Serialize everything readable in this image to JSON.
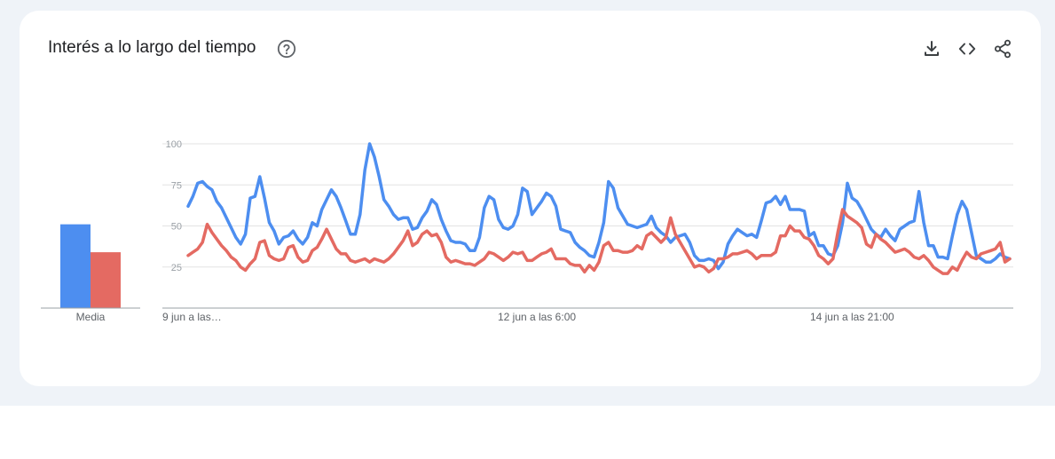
{
  "title": "Interés a lo largo del tiempo",
  "icons": {
    "help": "help-circle-icon",
    "download": "download-icon",
    "embed": "embed-code-icon",
    "share": "share-icon"
  },
  "colors": {
    "series_a": "#4d8ef0",
    "series_b": "#e46a62",
    "background": "#eff3f8",
    "card": "#ffffff"
  },
  "average": {
    "label": "Media",
    "values": [
      51,
      34
    ]
  },
  "chart_data": {
    "type": "line",
    "ylim": [
      0,
      100
    ],
    "yticks": [
      25,
      50,
      75,
      100
    ],
    "grid": true,
    "xtick_labels": [
      {
        "label": "9 jun a las…",
        "index": 0
      },
      {
        "label": "12 jun a las 6:00",
        "index": 73
      },
      {
        "label": "14 jun a las 21:00",
        "index": 139
      }
    ],
    "series": [
      {
        "color": "#4d8ef0",
        "values": [
          62,
          68,
          76,
          77,
          74,
          72,
          65,
          61,
          55,
          49,
          43,
          39,
          45,
          67,
          68,
          80,
          67,
          52,
          47,
          39,
          43,
          44,
          47,
          42,
          39,
          43,
          52,
          50,
          60,
          66,
          72,
          68,
          61,
          53,
          45,
          45,
          57,
          84,
          100,
          92,
          80,
          66,
          62,
          57,
          54,
          55,
          55,
          48,
          49,
          55,
          59,
          66,
          63,
          54,
          47,
          41,
          40,
          40,
          39,
          35,
          35,
          43,
          61,
          68,
          66,
          54,
          49,
          48,
          50,
          57,
          73,
          71,
          57,
          61,
          65,
          70,
          68,
          62,
          48,
          47,
          46,
          40,
          37,
          35,
          32,
          31,
          40,
          52,
          77,
          73,
          61,
          56,
          51,
          50,
          49,
          50,
          51,
          56,
          49,
          46,
          44,
          40,
          43,
          44,
          45,
          40,
          32,
          29,
          29,
          30,
          29,
          24,
          28,
          39,
          44,
          48,
          46,
          44,
          45,
          43,
          53,
          64,
          65,
          68,
          63,
          68,
          60,
          60,
          60,
          59,
          44,
          46,
          38,
          38,
          33,
          32,
          38,
          52,
          76,
          67,
          65,
          60,
          54,
          48,
          45,
          43,
          48,
          44,
          41,
          48,
          50,
          52,
          53,
          71,
          52,
          38,
          38,
          31,
          31,
          30,
          44,
          57,
          65,
          60,
          46,
          32,
          30,
          28,
          28,
          30,
          33,
          31,
          30
        ]
      },
      {
        "color": "#e46a62",
        "values": [
          32,
          34,
          36,
          40,
          51,
          46,
          42,
          38,
          35,
          31,
          29,
          25,
          23,
          27,
          30,
          40,
          41,
          32,
          30,
          29,
          30,
          37,
          38,
          31,
          28,
          29,
          35,
          37,
          42,
          48,
          42,
          36,
          33,
          33,
          29,
          28,
          29,
          30,
          28,
          30,
          29,
          28,
          30,
          33,
          37,
          41,
          47,
          38,
          40,
          45,
          47,
          44,
          45,
          40,
          31,
          28,
          29,
          28,
          27,
          27,
          26,
          28,
          30,
          34,
          33,
          31,
          29,
          31,
          34,
          33,
          34,
          29,
          29,
          31,
          33,
          34,
          36,
          30,
          30,
          30,
          27,
          26,
          26,
          22,
          26,
          23,
          28,
          38,
          40,
          35,
          35,
          34,
          34,
          35,
          38,
          36,
          44,
          46,
          43,
          40,
          43,
          55,
          45,
          40,
          35,
          30,
          25,
          26,
          25,
          22,
          24,
          30,
          30,
          31,
          33,
          33,
          34,
          35,
          33,
          30,
          32,
          32,
          32,
          34,
          44,
          44,
          50,
          47,
          47,
          43,
          42,
          38,
          32,
          30,
          27,
          30,
          46,
          60,
          56,
          54,
          52,
          49,
          39,
          37,
          45,
          42,
          40,
          37,
          34,
          35,
          36,
          34,
          31,
          30,
          32,
          29,
          25,
          23,
          21,
          21,
          25,
          23,
          29,
          34,
          31,
          30,
          33,
          34,
          35,
          36,
          40,
          28,
          30
        ]
      }
    ]
  }
}
